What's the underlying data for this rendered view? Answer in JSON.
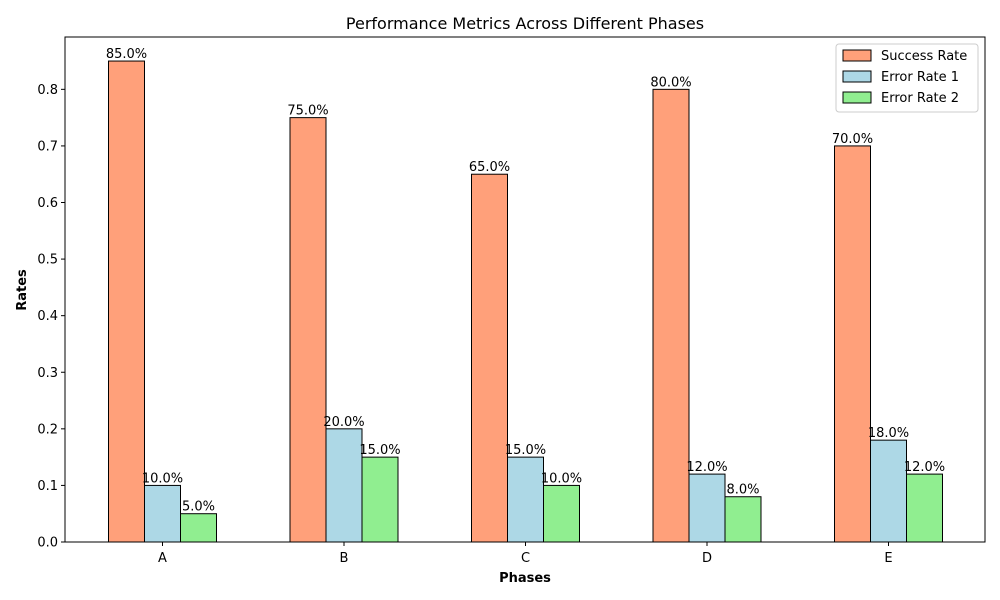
{
  "chart_data": {
    "type": "bar",
    "title": "Performance Metrics Across Different Phases",
    "xlabel": "Phases",
    "ylabel": "Rates",
    "categories": [
      "A",
      "B",
      "C",
      "D",
      "E"
    ],
    "series": [
      {
        "name": "Success Rate",
        "values": [
          0.85,
          0.75,
          0.65,
          0.8,
          0.7
        ],
        "labels": [
          "85.0%",
          "75.0%",
          "65.0%",
          "80.0%",
          "70.0%"
        ],
        "color": "#FFA07A"
      },
      {
        "name": "Error Rate 1",
        "values": [
          0.1,
          0.2,
          0.15,
          0.12,
          0.18
        ],
        "labels": [
          "10.0%",
          "20.0%",
          "15.0%",
          "12.0%",
          "18.0%"
        ],
        "color": "#ADD8E6"
      },
      {
        "name": "Error Rate 2",
        "values": [
          0.05,
          0.15,
          0.1,
          0.08,
          0.12
        ],
        "labels": [
          "5.0%",
          "15.0%",
          "10.0%",
          "8.0%",
          "12.0%"
        ],
        "color": "#90EE90"
      }
    ],
    "ylim": [
      0,
      0.8925
    ],
    "yticks": [
      "0.0",
      "0.1",
      "0.2",
      "0.3",
      "0.4",
      "0.5",
      "0.6",
      "0.7",
      "0.8"
    ],
    "grid": false,
    "legend_position": "top-right"
  }
}
